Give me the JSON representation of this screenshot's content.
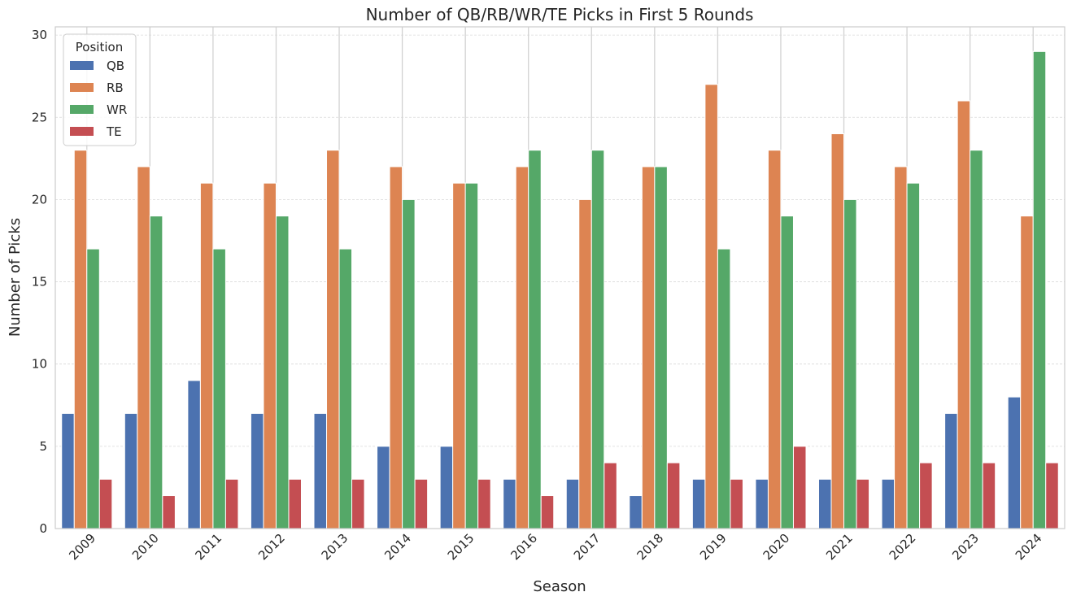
{
  "chart_data": {
    "type": "bar",
    "title": "Number of QB/RB/WR/TE Picks in First 5 Rounds",
    "xlabel": "Season",
    "ylabel": "Number of Picks",
    "ylim": [
      0,
      30.5
    ],
    "yticks": [
      0,
      5,
      10,
      15,
      20,
      25,
      30
    ],
    "grid": true,
    "categories": [
      "2009",
      "2010",
      "2011",
      "2012",
      "2013",
      "2014",
      "2015",
      "2016",
      "2017",
      "2018",
      "2019",
      "2020",
      "2021",
      "2022",
      "2023",
      "2024"
    ],
    "legend": {
      "title": "Position",
      "placement": "top-left"
    },
    "series": [
      {
        "name": "QB",
        "color": "#4c72b0",
        "values": [
          7,
          7,
          9,
          7,
          7,
          5,
          5,
          3,
          3,
          2,
          3,
          3,
          3,
          3,
          7,
          8
        ]
      },
      {
        "name": "RB",
        "color": "#dd8452",
        "values": [
          23,
          22,
          21,
          21,
          23,
          22,
          21,
          22,
          20,
          22,
          27,
          23,
          24,
          22,
          26,
          19
        ]
      },
      {
        "name": "WR",
        "color": "#55a868",
        "values": [
          17,
          19,
          17,
          19,
          17,
          20,
          21,
          23,
          23,
          22,
          17,
          19,
          20,
          21,
          23,
          29
        ]
      },
      {
        "name": "TE",
        "color": "#c44e52",
        "values": [
          3,
          2,
          3,
          3,
          3,
          3,
          3,
          2,
          4,
          4,
          3,
          5,
          3,
          4,
          4,
          4
        ]
      }
    ]
  }
}
